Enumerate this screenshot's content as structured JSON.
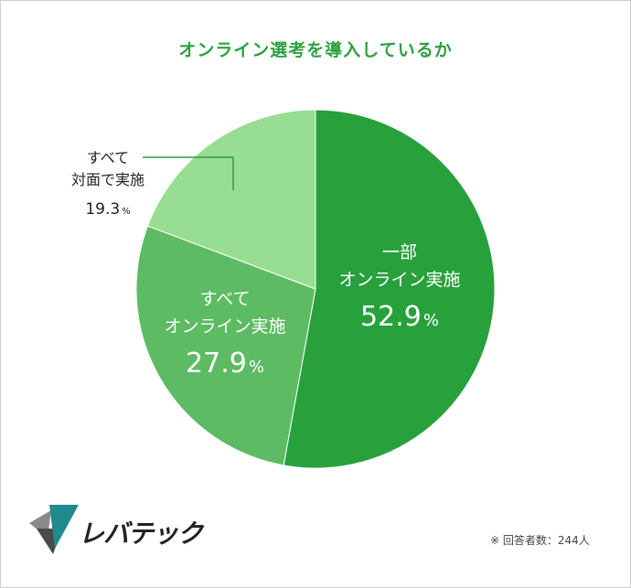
{
  "header": {
    "title": "オンライン選考を導入しているか"
  },
  "chart_data": {
    "type": "pie",
    "title": "オンライン選考を導入しているか",
    "slices": [
      {
        "label_lines": [
          "一部",
          "オンライン実施"
        ],
        "value": 52.9,
        "value_label": "52.9",
        "unit": "%",
        "color": "#28a13c"
      },
      {
        "label_lines": [
          "すべて",
          "オンライン実施"
        ],
        "value": 27.9,
        "value_label": "27.9",
        "unit": "%",
        "color": "#5dbb63"
      },
      {
        "label_lines": [
          "すべて",
          "対面で実施"
        ],
        "value": 19.3,
        "value_label": "19.3",
        "unit": "%",
        "color": "#97dd93"
      }
    ],
    "start": "top",
    "direction": "clockwise"
  },
  "footnote": "※ 回答者数：244人",
  "logo": {
    "text": "レバテック",
    "colors": {
      "dark": "#4a4a4a",
      "teal": "#1f8b8f",
      "gray": "#8a8a8a"
    }
  }
}
